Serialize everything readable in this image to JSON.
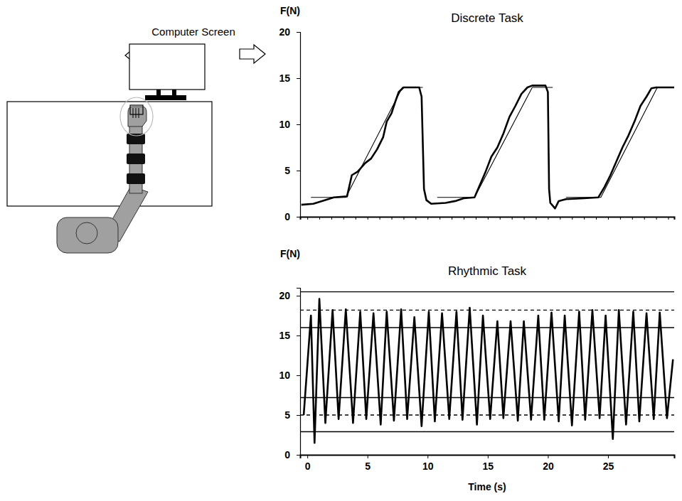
{
  "diagram": {
    "label": "Computer Screen"
  },
  "chart_data": [
    {
      "type": "line",
      "title": "Discrete Task",
      "y_label": "F(N)",
      "xlim": [
        -0.6,
        30.5
      ],
      "ylim": [
        0,
        20
      ],
      "xticks": [
        0,
        1,
        2,
        3,
        4,
        5,
        6,
        7,
        8,
        9,
        10,
        11,
        12,
        13,
        14,
        15,
        16,
        17,
        18,
        19,
        20,
        21,
        22,
        23,
        24,
        25,
        26,
        27,
        28,
        29,
        30
      ],
      "yticks": [
        0,
        5,
        10,
        15,
        20
      ],
      "tick_labels": "y",
      "series": [
        {
          "color": "#000000",
          "line_style": "solid",
          "x": [
            -0.5,
            0.5,
            1.5,
            2.2,
            3.3,
            3.7,
            4.2,
            4.8,
            5.3,
            5.8,
            6.3,
            6.6,
            7.0,
            7.3,
            7.6,
            8.0,
            9.3,
            9.5,
            9.7,
            9.9,
            10.3,
            11.5,
            12.3,
            13.0,
            13.9,
            14.3,
            14.8,
            15.3,
            15.8,
            16.3,
            16.8,
            17.3,
            17.8,
            18.3,
            18.7,
            19.8,
            20.0,
            20.1,
            20.2,
            20.4,
            20.6,
            20.9,
            21.5,
            23.0,
            24.2,
            24.7,
            25.2,
            25.7,
            26.2,
            26.7,
            27.2,
            27.7,
            28.2,
            28.6,
            29.0,
            30.5
          ],
          "values": [
            1.3,
            1.4,
            1.8,
            2.1,
            2.2,
            4.5,
            4.9,
            5.8,
            6.3,
            7.3,
            8.6,
            10.3,
            11.2,
            12.4,
            13.5,
            14.0,
            14.0,
            13.0,
            3.0,
            1.8,
            1.4,
            1.5,
            1.7,
            2.0,
            2.1,
            3.3,
            4.8,
            6.5,
            7.5,
            9.0,
            10.8,
            12.0,
            13.3,
            14.0,
            14.2,
            14.2,
            13.5,
            3.0,
            1.5,
            1.2,
            0.9,
            1.7,
            1.9,
            2.0,
            2.1,
            3.2,
            4.5,
            6.0,
            7.5,
            8.8,
            10.3,
            12.0,
            13.0,
            13.9,
            14.0,
            14.0
          ]
        },
        {
          "color": "#000000",
          "line_style": "solid",
          "x": [
            0.3,
            3.2,
            7.9,
            9.6,
            null,
            10.8,
            13.9,
            18.7,
            20.4,
            null,
            21.5,
            24.4,
            29.1,
            30.5
          ],
          "values": [
            2.1,
            2.1,
            14,
            14,
            null,
            2.1,
            2.1,
            14,
            14,
            null,
            2.1,
            2.1,
            14,
            14
          ]
        }
      ]
    },
    {
      "type": "line",
      "title": "Rhythmic Task",
      "y_label": "F(N)",
      "x_label": "Time (s)",
      "xlim": [
        -0.6,
        30.5
      ],
      "ylim": [
        0,
        21
      ],
      "xticks": [
        0,
        5,
        10,
        15,
        20,
        25
      ],
      "yticks": [
        0,
        5,
        10,
        15,
        20
      ],
      "series": [
        {
          "color": "#000000",
          "line_style": "solid",
          "x": [
            -0.3,
            0.3,
            0.6,
            1.0,
            1.5,
            2.1,
            2.6,
            3.2,
            3.8,
            4.4,
            4.9,
            5.5,
            6.1,
            6.6,
            7.2,
            7.8,
            8.3,
            8.9,
            9.5,
            10.1,
            10.6,
            11.2,
            11.8,
            12.4,
            12.9,
            13.5,
            14.1,
            14.6,
            15.2,
            15.8,
            16.3,
            16.9,
            17.5,
            18.0,
            18.6,
            19.2,
            19.7,
            20.3,
            20.9,
            21.4,
            22.0,
            22.6,
            23.1,
            23.7,
            24.3,
            24.8,
            25.4,
            25.9,
            26.5,
            27.1,
            27.6,
            28.2,
            28.8,
            29.3,
            29.9,
            30.4
          ],
          "values": [
            5,
            17.5,
            1.5,
            19.6,
            4,
            18.2,
            4.5,
            18.3,
            4,
            18,
            4.5,
            17.8,
            3.8,
            18,
            4.3,
            18.3,
            4.5,
            17.3,
            3.6,
            18,
            4.2,
            17.8,
            4.5,
            18,
            4.4,
            18.5,
            3.8,
            17.5,
            4.5,
            16.8,
            4.6,
            16.8,
            4.3,
            16.8,
            4.4,
            17.5,
            4.4,
            17.9,
            4.2,
            17.5,
            3.7,
            18,
            4.4,
            18.2,
            4.6,
            17.5,
            2.0,
            18.2,
            3.8,
            18,
            4.2,
            17.8,
            4.5,
            17.9,
            4.6,
            12
          ]
        },
        {
          "type": "hline",
          "color": "#000000",
          "line_style": "dashed",
          "values": [
            18.2,
            5
          ]
        },
        {
          "type": "hline",
          "color": "#000000",
          "line_style": "solid",
          "values": [
            20.5,
            16,
            7.2,
            2.9
          ]
        }
      ]
    }
  ]
}
